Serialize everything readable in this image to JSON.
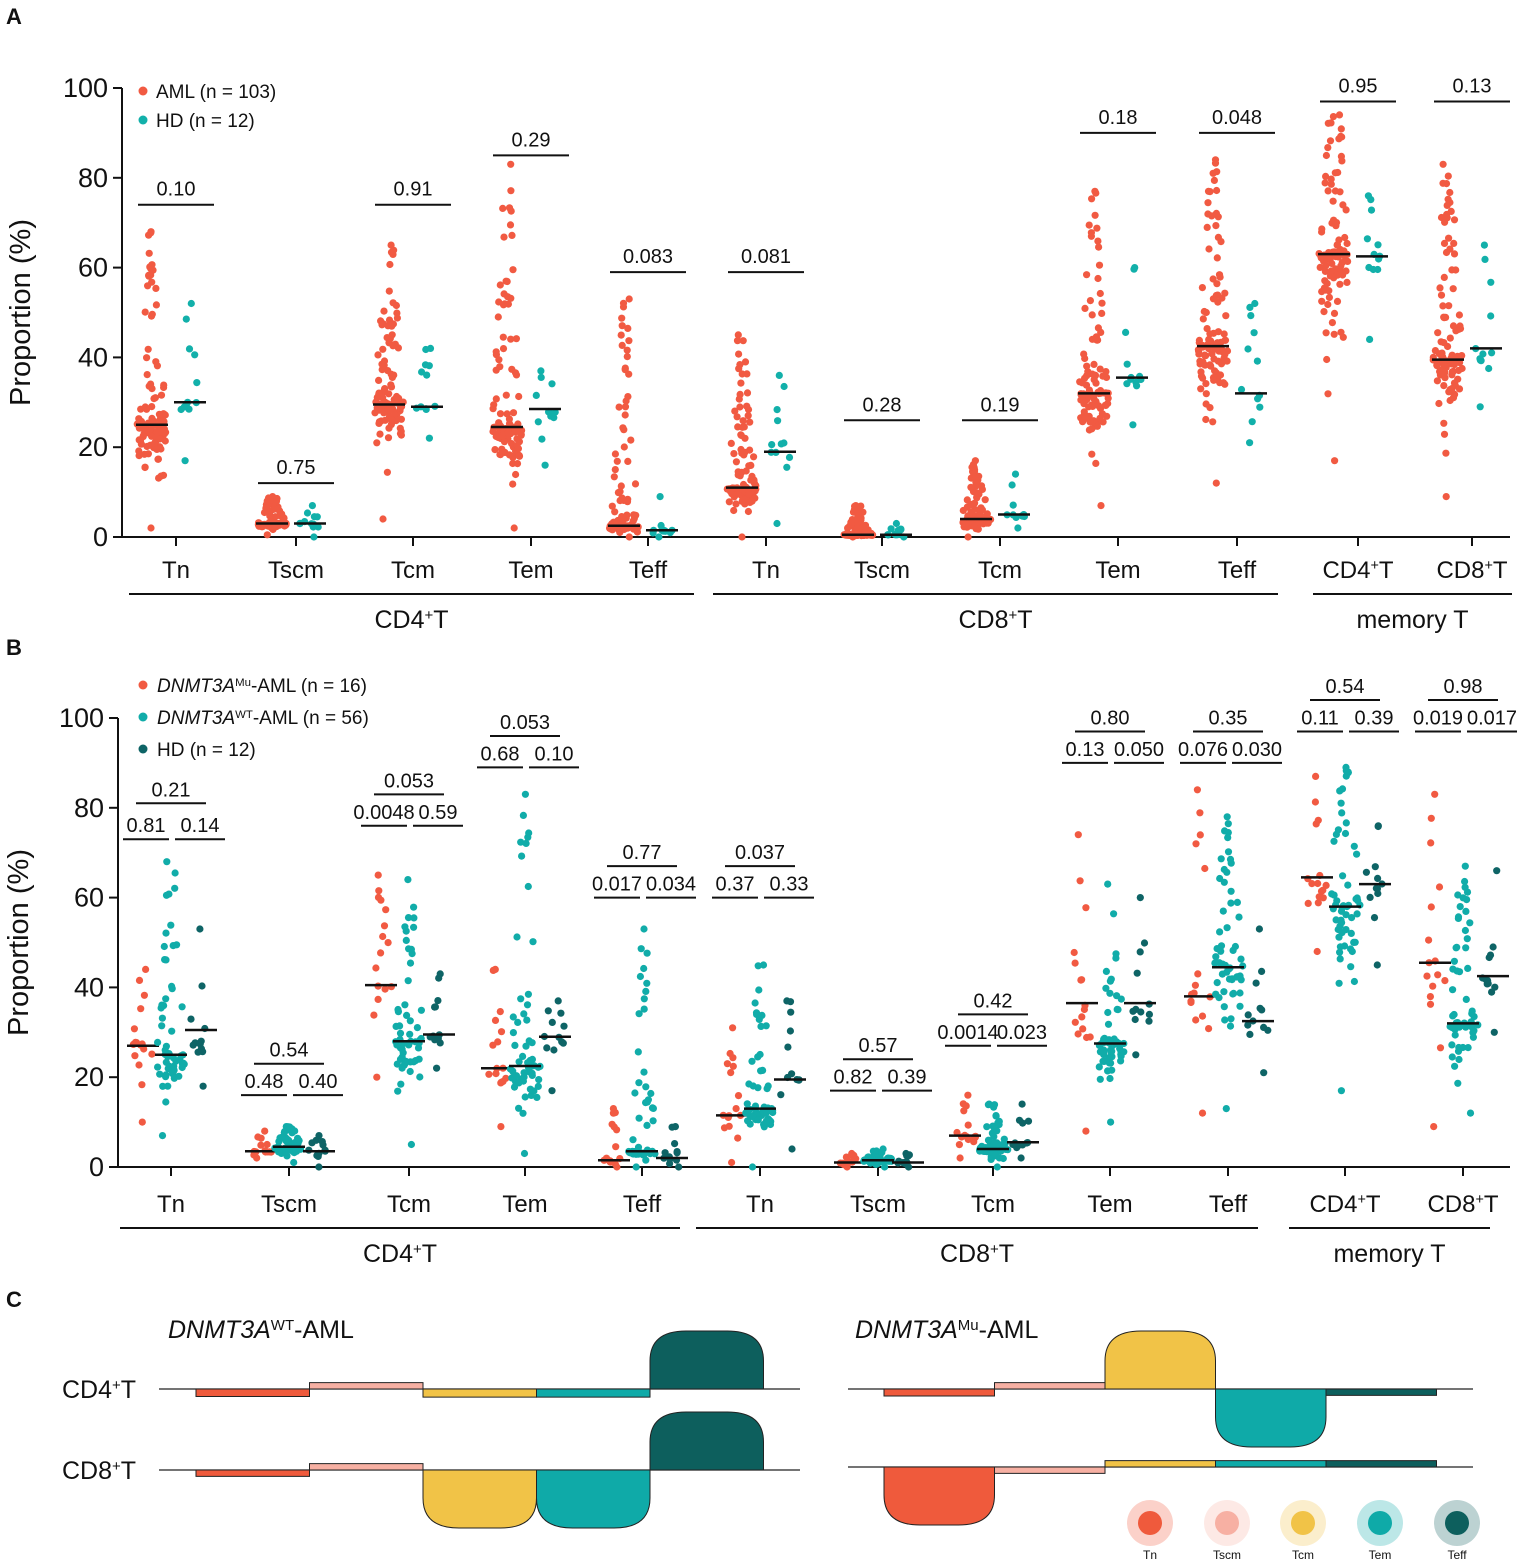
{
  "colors": {
    "aml": "#f15a42",
    "wt": "#11aca9",
    "hd_a": "#12b0aa",
    "hd_b": "#0e6466",
    "tn": "#ef5a3c",
    "tscm": "#f7b0a3",
    "tcm": "#f1c347",
    "tem": "#0faaa8",
    "teff": "#0d5f5d"
  },
  "chart_data": [
    {
      "panel": "A",
      "type": "scatter",
      "ylabel": "Proportion (%)",
      "ylim": [
        0,
        100
      ],
      "yticks": [
        "0",
        "20",
        "40",
        "60",
        "80",
        "100"
      ],
      "legend": [
        {
          "label": "AML (n = 103)",
          "color": "aml"
        },
        {
          "label": "HD (n = 12)",
          "color": "hd_a"
        }
      ],
      "groups": [
        {
          "label": "CD4⁺T",
          "categories": [
            "Tn",
            "Tscm",
            "Tcm",
            "Tem",
            "Teff"
          ]
        },
        {
          "label": "CD8⁺T",
          "categories": [
            "Tn",
            "Tscm",
            "Tcm",
            "Tem",
            "Teff"
          ]
        },
        {
          "label": "memory T",
          "categories": [
            "CD4⁺T",
            "CD8⁺T"
          ]
        }
      ],
      "series": [
        {
          "name": "AML",
          "n": 103,
          "medians": [
            25,
            3,
            29.5,
            24.5,
            2.5,
            11,
            0.5,
            4,
            32,
            42.5,
            63,
            39.5
          ],
          "ranges": [
            [
              2,
              68
            ],
            [
              0.5,
              9
            ],
            [
              4,
              65
            ],
            [
              2,
              83
            ],
            [
              0,
              53
            ],
            [
              0,
              45
            ],
            [
              0,
              7
            ],
            [
              0,
              17
            ],
            [
              7,
              77
            ],
            [
              12,
              84
            ],
            [
              17,
              94
            ],
            [
              9,
              83
            ]
          ]
        },
        {
          "name": "HD",
          "n": 12,
          "medians": [
            30,
            3,
            29,
            28.5,
            1.5,
            19,
            0.5,
            5,
            35.5,
            32,
            62.5,
            42
          ],
          "ranges": [
            [
              17,
              52
            ],
            [
              0,
              7
            ],
            [
              22,
              42
            ],
            [
              16,
              37
            ],
            [
              0,
              9
            ],
            [
              3,
              36
            ],
            [
              0,
              3
            ],
            [
              2,
              14
            ],
            [
              25,
              60
            ],
            [
              21,
              52
            ],
            [
              44,
              76
            ],
            [
              29,
              65
            ]
          ]
        }
      ],
      "pvalues": [
        "0.10",
        "0.75",
        "0.91",
        "0.29",
        "0.083",
        "0.081",
        "0.28",
        "0.19",
        "0.18",
        "0.048",
        "0.95",
        "0.13"
      ],
      "pvalue_heights": [
        74,
        12,
        74,
        85,
        59,
        59,
        26,
        26,
        90,
        90,
        97,
        97
      ]
    },
    {
      "panel": "B",
      "type": "scatter",
      "ylabel": "Proportion (%)",
      "ylim": [
        0,
        100
      ],
      "yticks": [
        "0",
        "20",
        "40",
        "60",
        "80",
        "100"
      ],
      "legend": [
        {
          "label_italic": "DNMT3A",
          "label_sup": "Mu",
          "label_rest": "-AML (n = 16)",
          "color": "aml"
        },
        {
          "label_italic": "DNMT3A",
          "label_sup": "WT",
          "label_rest": "-AML (n = 56)",
          "color": "wt"
        },
        {
          "label_italic": "",
          "label_sup": "",
          "label_rest": "HD (n = 12)",
          "color": "hd_b"
        }
      ],
      "groups": [
        {
          "label": "CD4⁺T",
          "categories": [
            "Tn",
            "Tscm",
            "Tcm",
            "Tem",
            "Teff"
          ]
        },
        {
          "label": "CD8⁺T",
          "categories": [
            "Tn",
            "Tscm",
            "Tcm",
            "Tem",
            "Teff"
          ]
        },
        {
          "label": "memory T",
          "categories": [
            "CD4⁺T",
            "CD8⁺T"
          ]
        }
      ],
      "series": [
        {
          "name": "DNMT3A-Mu-AML",
          "n": 16,
          "medians": [
            27,
            3.5,
            40.5,
            22,
            1.5,
            11.5,
            1,
            7,
            36.5,
            38,
            64.5,
            45.5
          ],
          "ranges": [
            [
              10,
              44
            ],
            [
              2,
              8
            ],
            [
              20,
              65
            ],
            [
              9,
              44
            ],
            [
              0,
              13
            ],
            [
              1,
              31
            ],
            [
              0,
              3
            ],
            [
              2,
              16
            ],
            [
              8,
              74
            ],
            [
              12,
              84
            ],
            [
              48,
              87
            ],
            [
              9,
              83
            ]
          ]
        },
        {
          "name": "DNMT3A-WT-AML",
          "n": 56,
          "medians": [
            25,
            4.5,
            28,
            22.5,
            3.5,
            13,
            1.5,
            4,
            27.5,
            44.5,
            58,
            32
          ],
          "ranges": [
            [
              7,
              68
            ],
            [
              1,
              9
            ],
            [
              5,
              64
            ],
            [
              3,
              83
            ],
            [
              0,
              53
            ],
            [
              0,
              45
            ],
            [
              0,
              4
            ],
            [
              0,
              14
            ],
            [
              10,
              63
            ],
            [
              13,
              78
            ],
            [
              17,
              89
            ],
            [
              12,
              67
            ]
          ]
        },
        {
          "name": "HD",
          "n": 12,
          "medians": [
            30.5,
            3.5,
            29.5,
            29,
            2,
            19.5,
            1,
            5.5,
            36.5,
            32.5,
            63,
            42.5
          ],
          "ranges": [
            [
              18,
              53
            ],
            [
              0,
              7
            ],
            [
              22,
              43
            ],
            [
              17,
              37
            ],
            [
              0,
              9
            ],
            [
              4,
              37
            ],
            [
              0,
              3
            ],
            [
              2,
              14
            ],
            [
              25,
              60
            ],
            [
              21,
              53
            ],
            [
              45,
              76
            ],
            [
              30,
              66
            ]
          ]
        }
      ],
      "comparisons": [
        {
          "top": "0.21",
          "left": "0.81",
          "right": "0.14"
        },
        {
          "top": "0.54",
          "left": "0.48",
          "right": "0.40"
        },
        {
          "top": "0.053",
          "left": "0.0048",
          "right": "0.59"
        },
        {
          "top": "0.053",
          "left": "0.68",
          "right": "0.10"
        },
        {
          "top": "0.77",
          "left": "0.017",
          "right": "0.034"
        },
        {
          "top": "0.037",
          "left": "0.37",
          "right": "0.33"
        },
        {
          "top": "0.57",
          "left": "0.82",
          "right": "0.39"
        },
        {
          "top": "0.42",
          "left": "0.0014",
          "right": "0.023"
        },
        {
          "top": "0.80",
          "left": "0.13",
          "right": "0.050"
        },
        {
          "top": "0.35",
          "left": "0.076",
          "right": "0.030"
        },
        {
          "top": "0.54",
          "left": "0.11",
          "right": "0.39"
        },
        {
          "top": "0.98",
          "left": "0.019",
          "right": "0.017"
        }
      ],
      "comparison_heights": [
        [
          81,
          73
        ],
        [
          23,
          16
        ],
        [
          83,
          76
        ],
        [
          96,
          89
        ],
        [
          67,
          60
        ],
        [
          67,
          60
        ],
        [
          24,
          17
        ],
        [
          34,
          27
        ],
        [
          97,
          90
        ],
        [
          97,
          90
        ],
        [
          104,
          97
        ],
        [
          104,
          97
        ]
      ]
    },
    {
      "panel": "C",
      "type": "area",
      "subsets": [
        "Tn",
        "Tscm",
        "Tcm",
        "Tem",
        "Teff"
      ],
      "subset_colors": [
        "tn",
        "tscm",
        "tcm",
        "tem",
        "teff"
      ],
      "rows": [
        "CD4⁺T",
        "CD8⁺T"
      ],
      "charts": [
        {
          "title_italic": "DNMT3A",
          "title_sup": "WT",
          "title_rest": "-AML",
          "CD4": [
            -0.13,
            0.11,
            -0.14,
            -0.14,
            1.0
          ],
          "CD8": [
            -0.11,
            0.11,
            -1.0,
            -1.0,
            1.0
          ]
        },
        {
          "title_italic": "DNMT3A",
          "title_sup": "Mu",
          "title_rest": "-AML",
          "CD4": [
            -0.12,
            0.11,
            1.0,
            -1.0,
            -0.11
          ],
          "CD8": [
            -1.0,
            -0.11,
            0.11,
            0.11,
            0.11
          ]
        }
      ]
    }
  ],
  "panel_labels": {
    "a": "A",
    "b": "B",
    "c": "C"
  },
  "row_labels": {
    "cd4_base": "CD4",
    "cd8_base": "CD8",
    "sup": "+",
    "suffix": "T"
  }
}
